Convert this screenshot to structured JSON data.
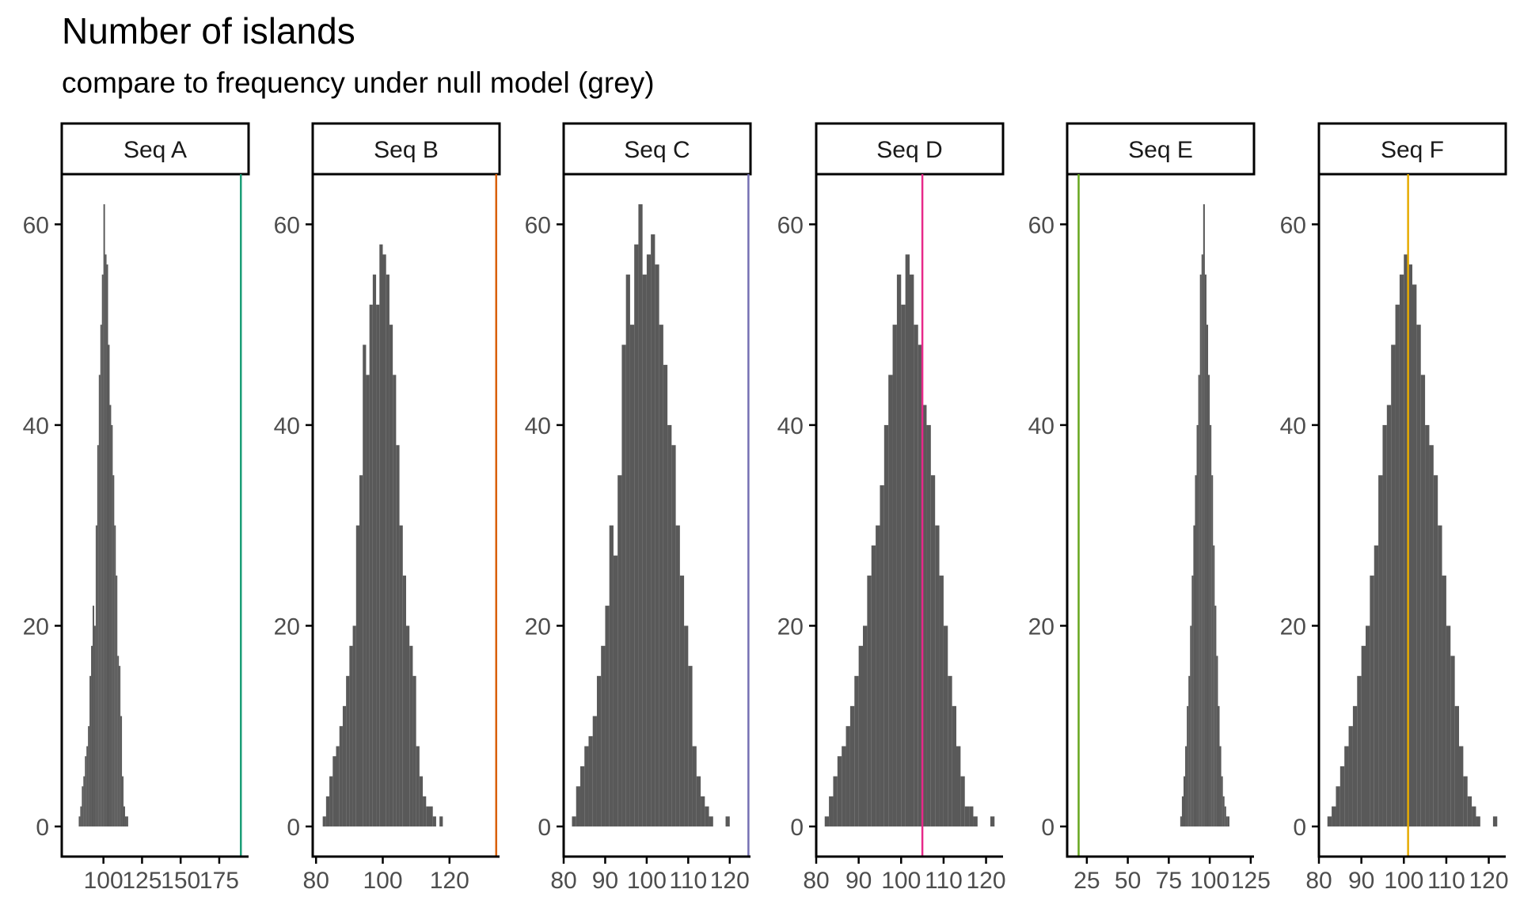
{
  "title": "Number of islands",
  "subtitle": "compare to frequency under null model (grey)",
  "colors": {
    "bar": "#595959",
    "strip_fill": "#ffffff",
    "axis": "#000000",
    "tick_label": "#4d4d4d"
  },
  "chart_data": {
    "type": "bar",
    "layout": "facets",
    "y_ticks": [
      0,
      20,
      40,
      60
    ],
    "ylim": [
      -3,
      65
    ],
    "grid": false,
    "panels": [
      {
        "label": "Seq A",
        "line_color": "#1b9e77",
        "observed": 189,
        "xlim": [
          73,
          194
        ],
        "x_ticks": [
          100,
          125,
          150,
          175
        ],
        "bin_start": 84,
        "bin_width": 1,
        "counts": [
          1,
          2,
          4,
          5,
          7,
          8,
          10,
          15,
          18,
          22,
          20,
          30,
          38,
          45,
          50,
          55,
          62,
          57,
          56,
          48,
          42,
          40,
          35,
          30,
          25,
          17,
          16,
          11,
          5,
          2,
          1,
          1
        ]
      },
      {
        "label": "Seq B",
        "line_color": "#d95f02",
        "observed": 134,
        "xlim": [
          79,
          135
        ],
        "x_ticks": [
          80,
          100,
          120
        ],
        "bin_start": 82,
        "bin_width": 1,
        "counts": [
          1,
          3,
          5,
          7,
          8,
          10,
          12,
          15,
          18,
          20,
          30,
          35,
          48,
          45,
          52,
          55,
          52,
          58,
          57,
          55,
          50,
          45,
          38,
          30,
          25,
          20,
          18,
          15,
          8,
          5,
          3,
          2,
          2,
          1,
          0,
          1
        ]
      },
      {
        "label": "Seq C",
        "line_color": "#7570b3",
        "observed": 124.5,
        "xlim": [
          80,
          125
        ],
        "x_ticks": [
          80,
          90,
          100,
          110,
          120
        ],
        "bin_start": 82,
        "bin_width": 1,
        "counts": [
          1,
          4,
          6,
          8,
          9,
          11,
          15,
          18,
          22,
          30,
          27,
          35,
          48,
          55,
          50,
          58,
          62,
          55,
          57,
          59,
          56,
          50,
          46,
          40,
          38,
          30,
          25,
          20,
          16,
          8,
          5,
          3,
          2,
          1,
          0,
          0,
          0,
          1
        ]
      },
      {
        "label": "Seq D",
        "line_color": "#e7298a",
        "observed": 105,
        "xlim": [
          80,
          124
        ],
        "x_ticks": [
          80,
          90,
          100,
          110,
          120
        ],
        "bin_start": 82,
        "bin_width": 1,
        "counts": [
          1,
          3,
          5,
          7,
          8,
          10,
          12,
          15,
          18,
          20,
          25,
          28,
          30,
          34,
          40,
          45,
          50,
          55,
          52,
          57,
          55,
          50,
          48,
          42,
          40,
          35,
          30,
          25,
          20,
          15,
          12,
          8,
          5,
          2,
          2,
          1,
          0,
          0,
          0,
          1
        ]
      },
      {
        "label": "Seq E",
        "line_color": "#66a61e",
        "observed": 20,
        "xlim": [
          13,
          127
        ],
        "x_ticks": [
          25,
          50,
          75,
          100,
          125
        ],
        "bin_start": 82,
        "bin_width": 1,
        "counts": [
          1,
          3,
          5,
          8,
          12,
          15,
          20,
          25,
          30,
          35,
          40,
          45,
          55,
          57,
          62,
          55,
          50,
          45,
          40,
          35,
          28,
          22,
          17,
          12,
          8,
          5,
          3,
          2,
          1,
          1
        ]
      },
      {
        "label": "Seq F",
        "line_color": "#e6ab02",
        "observed": 101,
        "xlim": [
          80,
          124
        ],
        "x_ticks": [
          80,
          90,
          100,
          110,
          120
        ],
        "bin_start": 82,
        "bin_width": 1,
        "counts": [
          1,
          2,
          4,
          6,
          8,
          10,
          12,
          15,
          18,
          20,
          25,
          28,
          35,
          40,
          42,
          48,
          52,
          55,
          57,
          56,
          54,
          50,
          45,
          40,
          38,
          35,
          30,
          25,
          20,
          17,
          12,
          8,
          5,
          3,
          2,
          1,
          0,
          0,
          0,
          1
        ]
      }
    ]
  }
}
